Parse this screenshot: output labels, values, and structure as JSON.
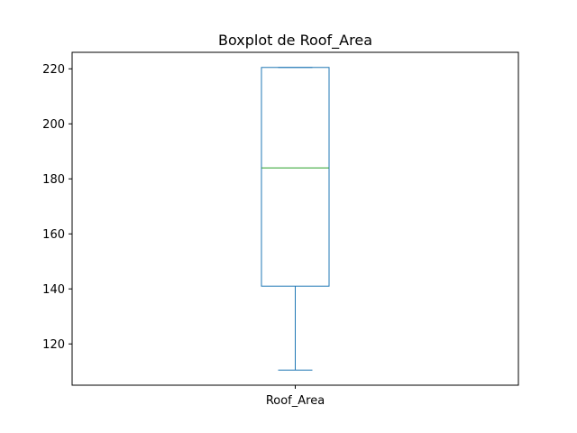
{
  "chart_data": {
    "type": "box",
    "title": "Boxplot de Roof_Area",
    "categories": [
      "Roof_Area"
    ],
    "boxes": [
      {
        "category": "Roof_Area",
        "whisker_low": 110.5,
        "q1": 141,
        "median": 184,
        "q3": 220.5,
        "whisker_high": 220.5
      }
    ],
    "ylim": [
      105,
      226
    ],
    "yticks": [
      120,
      140,
      160,
      180,
      200,
      220
    ],
    "grid": false,
    "colors": {
      "box": "#1f77b4",
      "median": "#2ca02c",
      "axis": "#000000"
    }
  }
}
